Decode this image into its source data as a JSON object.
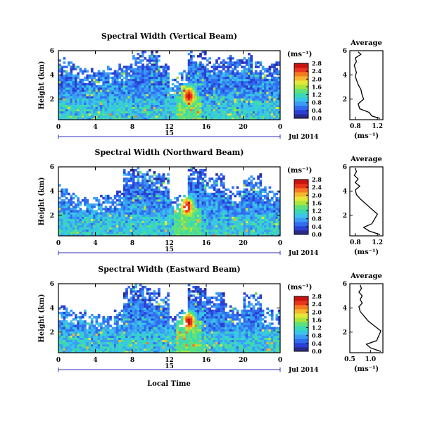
{
  "figure": {
    "time_axis_label": "Local Time",
    "day_label": "15",
    "month_year_label": "Jul 2014",
    "unit_label": "(ms⁻¹)",
    "average_title": "Average"
  },
  "colormap": [
    "#2a2a8a",
    "#2b3fd4",
    "#2f6cf0",
    "#3b9cf5",
    "#39c6e8",
    "#3ad9b4",
    "#5ee07a",
    "#a8e63e",
    "#e6e63a",
    "#f5b52e",
    "#f47a22",
    "#e8351c",
    "#c81410"
  ],
  "chart_data": [
    {
      "type": "heatmap",
      "title": "Spectral Width (Vertical Beam)",
      "ylabel": "Height (km)",
      "x_ticks": [
        "0",
        "4",
        "8",
        "12",
        "16",
        "20",
        "0"
      ],
      "xlim": [
        0,
        24
      ],
      "y_ticks": [
        "2",
        "4",
        "6"
      ],
      "ylim": [
        0.3,
        6
      ],
      "colorbar": {
        "ticks": [
          "0.0",
          "0.4",
          "0.8",
          "1.2",
          "1.6",
          "2.0",
          "2.4",
          "2.8"
        ],
        "range": [
          0.0,
          2.8
        ]
      },
      "data_coverage_top_km": [
        5.2,
        5.0,
        4.5,
        4.4,
        4.3,
        4.4,
        4.6,
        4.7,
        5.5,
        5.8,
        5.8,
        4.8,
        3.6,
        4.3,
        5.8,
        5.8,
        5.2,
        5.3,
        5.5,
        5.4,
        5.6,
        5.2,
        4.8,
        4.8
      ],
      "hotspot": {
        "time_h": 14.0,
        "height_km": 2.2,
        "value": 2.8
      },
      "average_profile": {
        "xlabel": "(ms⁻¹)",
        "x_ticks": [
          "0.8",
          "1.2"
        ],
        "xlim": [
          0.7,
          1.3
        ],
        "y_ticks": [
          "2",
          "4",
          "6"
        ],
        "ylim": [
          0.3,
          6
        ],
        "height_km": [
          0.4,
          0.6,
          0.9,
          1.2,
          1.6,
          2.0,
          2.4,
          2.8,
          3.2,
          3.6,
          3.9,
          4.2,
          4.5,
          4.8,
          5.1,
          5.4,
          5.7,
          5.9
        ],
        "values": [
          1.25,
          1.1,
          1.05,
          0.88,
          0.85,
          0.95,
          0.92,
          0.9,
          0.85,
          0.82,
          0.8,
          0.82,
          0.8,
          0.78,
          0.82,
          0.8,
          0.9,
          0.85
        ]
      }
    },
    {
      "type": "heatmap",
      "title": "Spectral Width (Northward Beam)",
      "ylabel": "Height (km)",
      "x_ticks": [
        "0",
        "4",
        "8",
        "12",
        "16",
        "20",
        "0"
      ],
      "xlim": [
        0,
        24
      ],
      "y_ticks": [
        "2",
        "4",
        "6"
      ],
      "ylim": [
        0.3,
        6
      ],
      "colorbar": {
        "ticks": [
          "0.0",
          "0.4",
          "0.8",
          "1.2",
          "1.6",
          "2.0",
          "2.4",
          "2.8"
        ],
        "range": [
          0.0,
          2.8
        ]
      },
      "data_coverage_top_km": [
        4.2,
        3.8,
        3.5,
        3.5,
        3.4,
        3.5,
        3.8,
        5.6,
        5.8,
        5.6,
        5.4,
        5.2,
        3.3,
        3.6,
        5.8,
        5.6,
        5.0,
        5.2,
        4.2,
        4.0,
        5.0,
        5.2,
        4.2,
        4.0
      ],
      "hotspot": {
        "time_h": 13.8,
        "height_km": 2.6,
        "value": 2.8
      },
      "average_profile": {
        "xlabel": "(ms⁻¹)",
        "x_ticks": [
          "0.8",
          "1.2"
        ],
        "xlim": [
          0.7,
          1.3
        ],
        "y_ticks": [
          "2",
          "4",
          "6"
        ],
        "ylim": [
          0.3,
          6
        ],
        "height_km": [
          0.4,
          0.7,
          1.0,
          1.3,
          1.7,
          2.1,
          2.5,
          2.9,
          3.3,
          3.7,
          4.1,
          4.4,
          4.7,
          5.0,
          5.3,
          5.6,
          5.9
        ],
        "values": [
          1.25,
          1.05,
          0.95,
          1.1,
          1.15,
          1.2,
          1.1,
          1.0,
          0.9,
          0.82,
          0.8,
          0.88,
          0.8,
          0.85,
          0.78,
          0.82,
          0.8
        ]
      }
    },
    {
      "type": "heatmap",
      "title": "Spectral Width (Eastward Beam)",
      "ylabel": "Height (km)",
      "x_ticks": [
        "0",
        "4",
        "8",
        "12",
        "16",
        "20",
        "0"
      ],
      "xlim": [
        0,
        24
      ],
      "y_ticks": [
        "2",
        "4",
        "6"
      ],
      "ylim": [
        0.3,
        6
      ],
      "colorbar": {
        "ticks": [
          "0.0",
          "0.4",
          "0.8",
          "1.2",
          "1.6",
          "2.0",
          "2.4",
          "2.8"
        ],
        "range": [
          0.0,
          2.8
        ]
      },
      "data_coverage_top_km": [
        4.0,
        3.7,
        3.5,
        3.3,
        3.3,
        3.4,
        3.6,
        5.5,
        5.8,
        5.5,
        5.3,
        5.0,
        3.4,
        3.6,
        5.8,
        5.6,
        5.0,
        5.2,
        4.0,
        3.8,
        5.0,
        5.0,
        3.8,
        3.6
      ],
      "hotspot": {
        "time_h": 14.0,
        "height_km": 2.8,
        "value": 2.8
      },
      "average_profile": {
        "xlabel": "(ms⁻¹)",
        "x_ticks": [
          "0.5",
          "1.0"
        ],
        "xlim": [
          0.5,
          1.3
        ],
        "y_ticks": [
          "2",
          "4",
          "6"
        ],
        "ylim": [
          0.3,
          6
        ],
        "height_km": [
          0.4,
          0.7,
          1.0,
          1.3,
          1.7,
          2.1,
          2.5,
          2.9,
          3.3,
          3.7,
          4.1,
          4.4,
          4.7,
          5.0,
          5.3,
          5.6,
          5.9
        ],
        "values": [
          1.25,
          1.0,
          0.9,
          1.15,
          1.2,
          1.25,
          1.1,
          0.95,
          0.85,
          0.75,
          0.72,
          0.8,
          0.75,
          0.8,
          0.72,
          0.78,
          0.75
        ]
      }
    }
  ]
}
